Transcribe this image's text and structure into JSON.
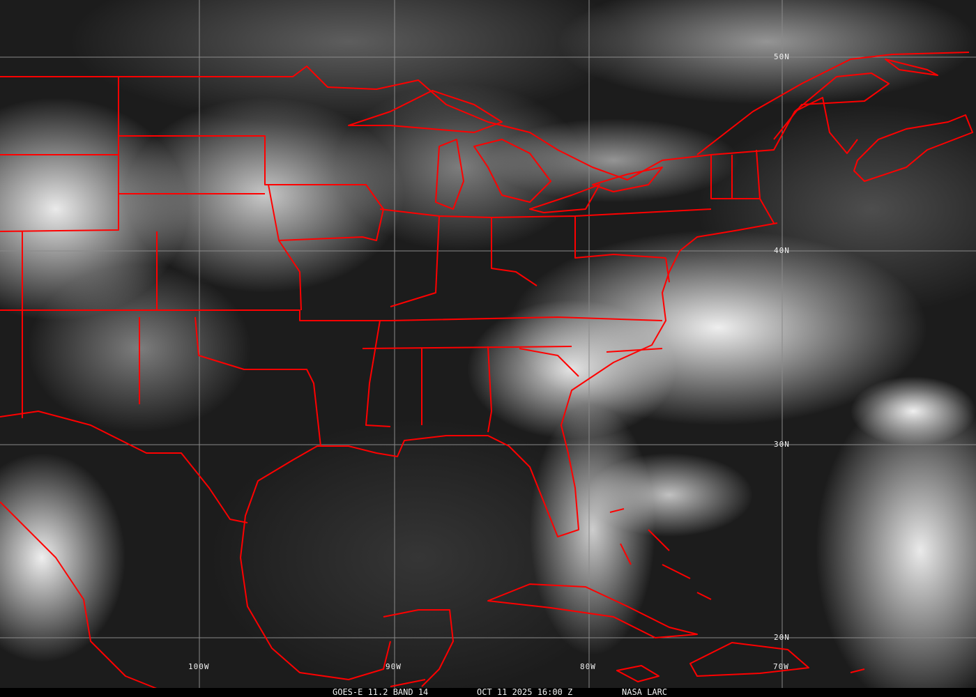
{
  "caption": {
    "product": "GOES-E 11.2 BAND 14",
    "datetime": "OCT 11 2025 16:00 Z",
    "credit": "NASA LARC"
  },
  "grid": {
    "lat_labels": [
      "50N",
      "40N",
      "30N",
      "20N"
    ],
    "lon_labels": [
      "100W",
      "90W",
      "80W",
      "70W"
    ]
  },
  "colors": {
    "borders": "#ff0000",
    "grid": "#8a8a8a"
  }
}
